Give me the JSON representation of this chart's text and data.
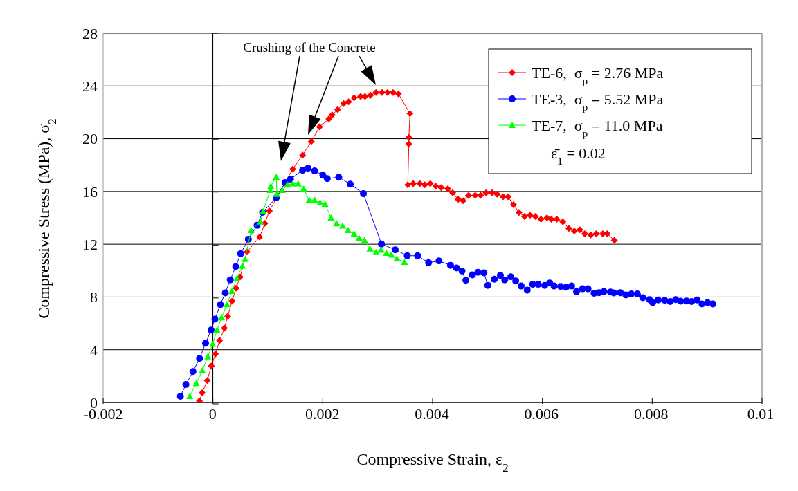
{
  "chart_data": {
    "type": "line",
    "xlabel": "Compressive Strain, ε$_{2}$",
    "ylabel": "Compressive Stress (MPa), σ$_{2}$",
    "xlim": [
      -0.002,
      0.01
    ],
    "xticks": [
      -0.002,
      0,
      0.002,
      0.004,
      0.006,
      0.008,
      0.01
    ],
    "ylim": [
      0,
      28
    ],
    "yticks": [
      0,
      4,
      8,
      12,
      16,
      20,
      24,
      28
    ],
    "grid": "y",
    "legend": "top right",
    "line_style": "solid",
    "ref_lines": [
      {
        "axis": "x",
        "value": 0,
        "color": "#000000"
      }
    ],
    "annotations": [
      "Crushing of the Concrete",
      "ε̄$_{1}$ = 0.02"
    ],
    "series": [
      {
        "name": "TE-6,  σ$_{p}$ = 2.76 MPa",
        "color": "#ff0000",
        "marker": "diamond",
        "x": [
          -0.000243,
          -0.000193,
          -0.0001,
          -2.5e-05,
          5e-05,
          0.000126,
          0.000214,
          0.000273,
          0.000353,
          0.000428,
          0.0005,
          0.000626,
          0.000856,
          0.000953,
          0.001033,
          0.00146,
          0.00164,
          0.0018,
          0.00195,
          0.00212,
          0.00218,
          0.00228,
          0.00239,
          0.00248,
          0.00258,
          0.0027,
          0.00278,
          0.00288,
          0.00298,
          0.00309,
          0.00319,
          0.00329,
          0.00339,
          0.0036,
          0.00358,
          0.00358,
          0.00356,
          0.00366,
          0.00378,
          0.00387,
          0.00397,
          0.00407,
          0.00417,
          0.00429,
          0.00438,
          0.00448,
          0.00457,
          0.00467,
          0.00479,
          0.00489,
          0.00499,
          0.0051,
          0.00519,
          0.0053,
          0.00539,
          0.00549,
          0.00559,
          0.00569,
          0.00579,
          0.00589,
          0.00599,
          0.0061,
          0.00618,
          0.00628,
          0.00639,
          0.0065,
          0.0066,
          0.0067,
          0.00679,
          0.0069,
          0.007,
          0.00712,
          0.0072,
          0.00733
        ],
        "values": [
          0.12,
          0.73,
          1.67,
          2.76,
          3.68,
          4.7,
          5.64,
          6.53,
          7.68,
          8.67,
          9.52,
          11.42,
          12.54,
          13.58,
          14.52,
          17.7,
          18.76,
          19.8,
          20.9,
          21.5,
          21.8,
          22.2,
          22.67,
          22.8,
          23.1,
          23.2,
          23.2,
          23.3,
          23.5,
          23.5,
          23.5,
          23.5,
          23.4,
          21.9,
          20.1,
          19.6,
          16.5,
          16.6,
          16.6,
          16.5,
          16.6,
          16.4,
          16.3,
          16.2,
          15.9,
          15.4,
          15.3,
          15.7,
          15.7,
          15.7,
          15.9,
          15.9,
          15.8,
          15.6,
          15.6,
          15,
          14.4,
          14.1,
          14.2,
          14.1,
          13.9,
          14,
          13.9,
          13.9,
          13.7,
          13.2,
          13,
          13.1,
          12.8,
          12.7,
          12.8,
          12.8,
          12.8,
          12.3
        ]
      },
      {
        "name": "TE-3,  σ$_{p}$ = 5.52 MPa",
        "color": "#0000ff",
        "marker": "circle",
        "x": [
          -0.00059,
          -0.00049,
          -0.00036,
          -0.00024,
          -0.00013,
          -3e-05,
          4e-05,
          0.00014,
          0.00023,
          0.00032,
          0.00042,
          0.00051,
          0.00065,
          0.00081,
          0.00091,
          0.00116,
          0.00132,
          0.00142,
          0.00164,
          0.00174,
          0.00186,
          0.00201,
          0.00209,
          0.0023,
          0.00251,
          0.00275,
          0.00308,
          0.00333,
          0.00355,
          0.00374,
          0.00394,
          0.00413,
          0.00434,
          0.00445,
          0.00455,
          0.00462,
          0.00474,
          0.00484,
          0.00495,
          0.00502,
          0.00514,
          0.00525,
          0.00533,
          0.00544,
          0.00553,
          0.00563,
          0.00574,
          0.00584,
          0.00594,
          0.00606,
          0.00615,
          0.00623,
          0.00635,
          0.00645,
          0.00655,
          0.00664,
          0.00675,
          0.00685,
          0.00696,
          0.00705,
          0.00714,
          0.00726,
          0.00732,
          0.00744,
          0.00754,
          0.00764,
          0.00775,
          0.00785,
          0.00797,
          0.00803,
          0.00813,
          0.00825,
          0.00835,
          0.00845,
          0.00854,
          0.00865,
          0.00874,
          0.00884,
          0.00893,
          0.00903,
          0.00913
        ],
        "values": [
          0.47,
          1.36,
          2.35,
          3.34,
          4.49,
          5.49,
          6.32,
          7.42,
          8.31,
          9.3,
          10.3,
          11.29,
          12.38,
          13.43,
          14.42,
          15.52,
          16.67,
          16.93,
          17.61,
          17.76,
          17.56,
          17.24,
          16.98,
          17.08,
          16.56,
          15.83,
          12.02,
          11.58,
          11.13,
          11.13,
          10.6,
          10.74,
          10.4,
          10.2,
          9.96,
          9.27,
          9.68,
          9.87,
          9.83,
          8.88,
          9.35,
          9.64,
          9.3,
          9.53,
          9.21,
          8.83,
          8.52,
          8.96,
          8.96,
          8.87,
          9.06,
          8.83,
          8.8,
          8.74,
          8.83,
          8.4,
          8.62,
          8.62,
          8.28,
          8.33,
          8.41,
          8.37,
          8.31,
          8.33,
          8.15,
          8.23,
          8.23,
          7.95,
          7.8,
          7.58,
          7.77,
          7.75,
          7.66,
          7.8,
          7.68,
          7.69,
          7.66,
          7.77,
          7.47,
          7.58,
          7.47
        ]
      },
      {
        "name": "TE-7,  σ$_{p}$ = 11.0 MPa",
        "color": "#00ff00",
        "marker": "triangle",
        "x": [
          -0.00042,
          -0.0003,
          -0.00019,
          -9e-05,
          0,
          8e-05,
          0.00016,
          0.00026,
          0.00035,
          0.00044,
          0.00054,
          0.00059,
          0.0007,
          0.00087,
          0.00092,
          0.00105,
          0.00106,
          0.00116,
          0.00117,
          0.00127,
          0.00136,
          0.00146,
          0.00156,
          0.00166,
          0.00176,
          0.00186,
          0.00196,
          0.00205,
          0.00216,
          0.00226,
          0.00237,
          0.00247,
          0.00258,
          0.00267,
          0.00277,
          0.00287,
          0.00298,
          0.00307,
          0.00317,
          0.00326,
          0.00336,
          0.0035
        ],
        "values": [
          0.47,
          1.46,
          2.42,
          3.47,
          4.43,
          5.49,
          6.43,
          7.43,
          8.44,
          9.4,
          10.35,
          10.87,
          13.05,
          13.7,
          14.5,
          16.1,
          16.4,
          17.1,
          15.8,
          16.1,
          16.5,
          16.6,
          16.6,
          16.2,
          15.35,
          15.35,
          15.17,
          15.05,
          14,
          13.57,
          13.4,
          13.05,
          12.8,
          12.48,
          12.3,
          11.65,
          11.39,
          11.56,
          11.33,
          11.2,
          10.9,
          10.65
        ]
      }
    ]
  }
}
